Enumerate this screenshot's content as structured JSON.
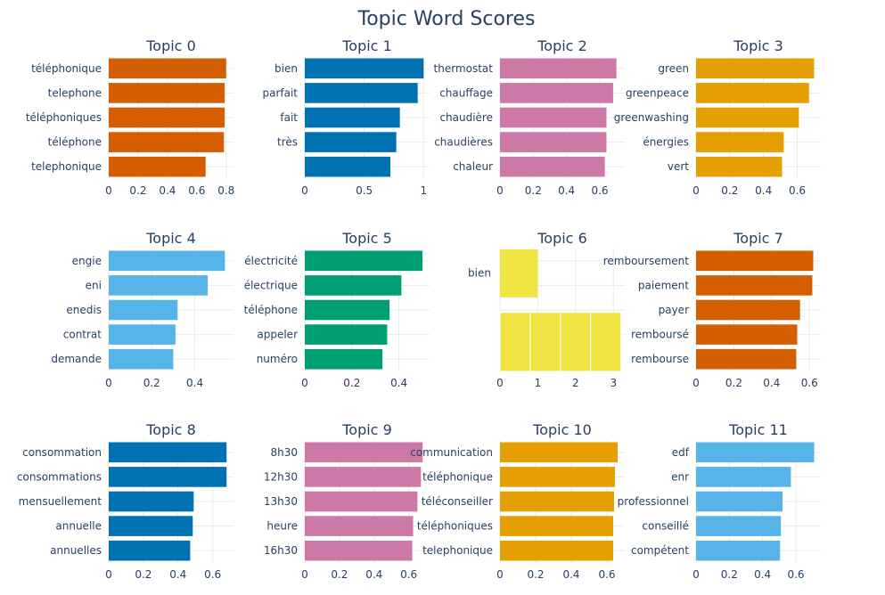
{
  "title": "Topic Word Scores",
  "chart_data": [
    {
      "type": "bar",
      "orientation": "horizontal",
      "title": "Topic 0",
      "color": "#D55E00",
      "categories": [
        "téléphonique",
        "telephone",
        "téléphoniques",
        "téléphone",
        "telephonique"
      ],
      "values": [
        0.8,
        0.79,
        0.79,
        0.785,
        0.66
      ],
      "xlim": [
        0,
        0.85
      ],
      "xticks": [
        0,
        0.2,
        0.4,
        0.6,
        0.8
      ],
      "xtick_labels": [
        "0",
        "0.2",
        "0.4",
        "0.6",
        "0.8"
      ]
    },
    {
      "type": "bar",
      "orientation": "horizontal",
      "title": "Topic 1",
      "color": "#0072B2",
      "categories": [
        "bien",
        "parfait",
        "fait",
        "très",
        ""
      ],
      "values": [
        1.0,
        0.95,
        0.8,
        0.77,
        0.72
      ],
      "xlim": [
        0,
        1.05
      ],
      "xticks": [
        0,
        0.5,
        1
      ],
      "xtick_labels": [
        "0",
        "0.5",
        "1"
      ]
    },
    {
      "type": "bar",
      "orientation": "horizontal",
      "title": "Topic 2",
      "color": "#CC79A7",
      "categories": [
        "thermostat",
        "chauffage",
        "chaudière",
        "chaudières",
        "chaleur"
      ],
      "values": [
        0.7,
        0.68,
        0.64,
        0.64,
        0.63
      ],
      "xlim": [
        0,
        0.75
      ],
      "xticks": [
        0,
        0.2,
        0.4,
        0.6
      ],
      "xtick_labels": [
        "0",
        "0.2",
        "0.4",
        "0.6"
      ]
    },
    {
      "type": "bar",
      "orientation": "horizontal",
      "title": "Topic 3",
      "color": "#E69F00",
      "categories": [
        "green",
        "greenpeace",
        "greenwashing",
        "énergies",
        "vert"
      ],
      "values": [
        0.7,
        0.67,
        0.61,
        0.52,
        0.51
      ],
      "xlim": [
        0,
        0.74
      ],
      "xticks": [
        0,
        0.2,
        0.4,
        0.6
      ],
      "xtick_labels": [
        "0",
        "0.2",
        "0.4",
        "0.6"
      ]
    },
    {
      "type": "bar",
      "orientation": "horizontal",
      "title": "Topic 4",
      "color": "#56B4E9",
      "categories": [
        "engie",
        "eni",
        "enedis",
        "contrat",
        "demande"
      ],
      "values": [
        0.54,
        0.46,
        0.32,
        0.31,
        0.3
      ],
      "xlim": [
        0,
        0.58
      ],
      "xticks": [
        0,
        0.2,
        0.4
      ],
      "xtick_labels": [
        "0",
        "0.2",
        "0.4"
      ]
    },
    {
      "type": "bar",
      "orientation": "horizontal",
      "title": "Topic 5",
      "color": "#009E73",
      "categories": [
        "électricité",
        "électrique",
        "téléphone",
        "appeler",
        "numéro"
      ],
      "values": [
        0.5,
        0.41,
        0.36,
        0.35,
        0.33
      ],
      "xlim": [
        0,
        0.53
      ],
      "xticks": [
        0,
        0.2,
        0.4
      ],
      "xtick_labels": [
        "0",
        "0.2",
        "0.4"
      ]
    },
    {
      "type": "bar",
      "orientation": "horizontal",
      "title": "Topic 6",
      "color": "#F0E442",
      "categories": [
        "bien",
        "",
        "",
        "",
        ""
      ],
      "values": [
        1.0,
        0.8,
        0.8,
        0.8,
        0.8
      ],
      "stacked_segments": true,
      "xlim": [
        0,
        3.3
      ],
      "xticks": [
        0,
        1,
        2,
        3
      ],
      "xtick_labels": [
        "0",
        "1",
        "2",
        "3"
      ]
    },
    {
      "type": "bar",
      "orientation": "horizontal",
      "title": "Topic 7",
      "color": "#D55E00",
      "categories": [
        "remboursement",
        "paiement",
        "payer",
        "remboursé",
        "rembourse"
      ],
      "values": [
        0.62,
        0.615,
        0.55,
        0.535,
        0.53
      ],
      "xlim": [
        0,
        0.66
      ],
      "xticks": [
        0,
        0.2,
        0.4,
        0.6
      ],
      "xtick_labels": [
        "0",
        "0.2",
        "0.4",
        "0.6"
      ]
    },
    {
      "type": "bar",
      "orientation": "horizontal",
      "title": "Topic 8",
      "color": "#0072B2",
      "categories": [
        "consommation",
        "consommations",
        "mensuellement",
        "annuelle",
        "annuelles"
      ],
      "values": [
        0.68,
        0.68,
        0.49,
        0.485,
        0.47
      ],
      "xlim": [
        0,
        0.72
      ],
      "xticks": [
        0,
        0.2,
        0.4,
        0.6
      ],
      "xtick_labels": [
        "0",
        "0.2",
        "0.4",
        "0.6"
      ]
    },
    {
      "type": "bar",
      "orientation": "horizontal",
      "title": "Topic 9",
      "color": "#CC79A7",
      "categories": [
        "8h30",
        "12h30",
        "13h30",
        "heure",
        "16h30"
      ],
      "values": [
        0.68,
        0.67,
        0.65,
        0.625,
        0.62
      ],
      "xlim": [
        0,
        0.72
      ],
      "xticks": [
        0,
        0.2,
        0.4,
        0.6
      ],
      "xtick_labels": [
        "0",
        "0.2",
        "0.4",
        "0.6"
      ]
    },
    {
      "type": "bar",
      "orientation": "horizontal",
      "title": "Topic 10",
      "color": "#E69F00",
      "categories": [
        "communication",
        "téléphonique",
        "téléconseiller",
        "téléphoniques",
        "telephonique"
      ],
      "values": [
        0.66,
        0.645,
        0.64,
        0.635,
        0.635
      ],
      "xlim": [
        0,
        0.7
      ],
      "xticks": [
        0,
        0.2,
        0.4,
        0.6
      ],
      "xtick_labels": [
        "0",
        "0.2",
        "0.4",
        "0.6"
      ]
    },
    {
      "type": "bar",
      "orientation": "horizontal",
      "title": "Topic 11",
      "color": "#56B4E9",
      "categories": [
        "edf",
        "enr",
        "professionnel",
        "conseillé",
        "compétent"
      ],
      "values": [
        0.71,
        0.57,
        0.52,
        0.51,
        0.505
      ],
      "xlim": [
        0,
        0.75
      ],
      "xticks": [
        0,
        0.2,
        0.4,
        0.6
      ],
      "xtick_labels": [
        "0",
        "0.2",
        "0.4",
        "0.6"
      ]
    }
  ]
}
